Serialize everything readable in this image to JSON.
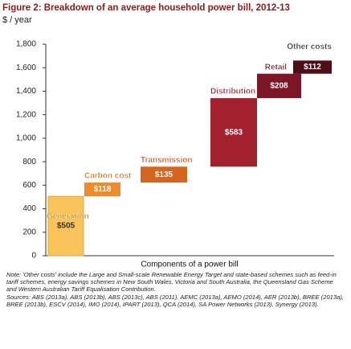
{
  "chart_data": {
    "type": "waterfall",
    "title": "Figure 2: Breakdown of an average household power bill, 2012-13",
    "y_axis_label": "$ / year",
    "x_axis_label": "Components of a power bill",
    "categories": [
      "Generation",
      "Carbon cost",
      "Transmission",
      "Distribution",
      "Retail",
      "Other costs"
    ],
    "values": [
      505,
      118,
      135,
      583,
      208,
      112
    ],
    "value_labels": [
      "$505",
      "$118",
      "$135",
      "$583",
      "$208",
      "$112"
    ],
    "colors": [
      "#f7c35a",
      "#ec8c2c",
      "#d6651f",
      "#a3202e",
      "#7d1626",
      "#4d0e18"
    ],
    "ylim": [
      0,
      1800
    ],
    "yticks": [
      0,
      200,
      400,
      600,
      800,
      {
        "value": 1000,
        "label": "1,000"
      },
      {
        "value": 1200,
        "label": "1,200"
      },
      {
        "value": 1400,
        "label": "1,400"
      },
      {
        "value": 1600,
        "label": "1,600"
      },
      {
        "value": 1800,
        "label": "1,800"
      }
    ],
    "grid": false,
    "note": "Note: 'Other costs' include the Large and Small-scale Renewable Energy Target and state-based schemes such as feed-in tariff schemes, energy savings schemes in New South Wales, Victoria and South Australia, the Queensland Gas Scheme and Western Australian Tariff Equalisation Contribution.",
    "sources": "Sources: ABS (2013a), ABS (2013b), ABS (2013c), ABS (2011), AEMC (2013a), AEMO (2014), AER (2013b), BREE (2013a), BREE (2013b), ESCV (2014), IMO (2014), IPART (2013), QCA (2014), SA Power Networks (2013), Synergy (2013)."
  }
}
